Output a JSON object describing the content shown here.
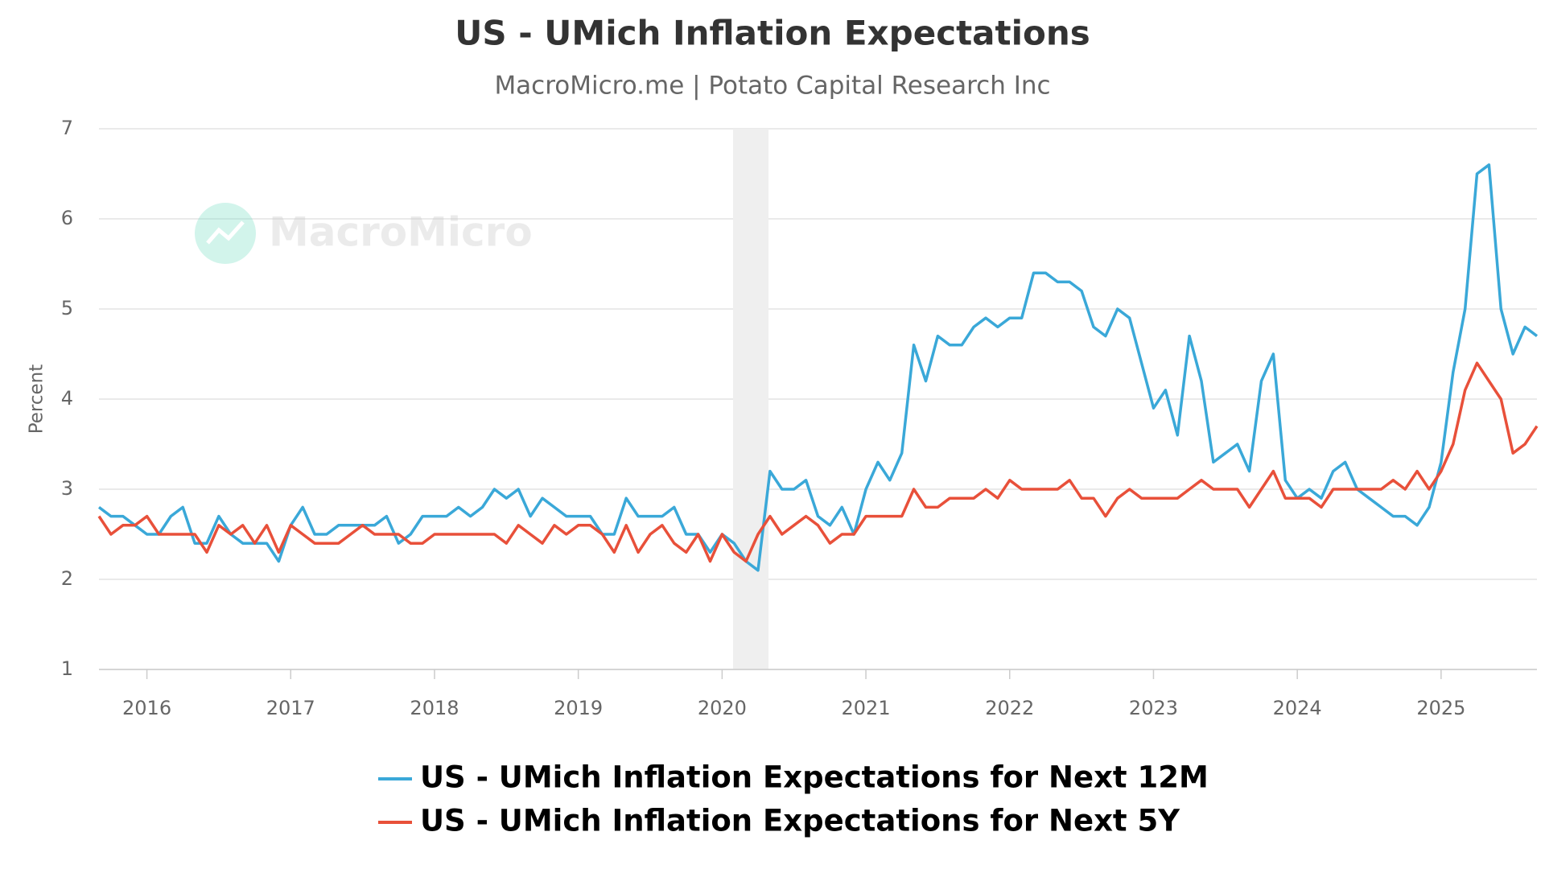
{
  "chart_data": {
    "type": "line",
    "title": "US - UMich Inflation Expectations",
    "subtitle": "MacroMicro.me | Potato Capital Research Inc",
    "watermark": "MacroMicro",
    "y_label": "Percent",
    "categories": [
      null,
      null,
      null,
      null,
      "2016",
      null,
      null,
      null,
      null,
      null,
      null,
      null,
      null,
      null,
      null,
      null,
      "2017",
      null,
      null,
      null,
      null,
      null,
      null,
      null,
      null,
      null,
      null,
      null,
      "2018",
      null,
      null,
      null,
      null,
      null,
      null,
      null,
      null,
      null,
      null,
      null,
      "2019",
      null,
      null,
      null,
      null,
      null,
      null,
      null,
      null,
      null,
      null,
      null,
      "2020",
      null,
      null,
      null,
      null,
      null,
      null,
      null,
      null,
      null,
      null,
      null,
      "2021",
      null,
      null,
      null,
      null,
      null,
      null,
      null,
      null,
      null,
      null,
      null,
      "2022",
      null,
      null,
      null,
      null,
      null,
      null,
      null,
      null,
      null,
      null,
      null,
      "2023",
      null,
      null,
      null,
      null,
      null,
      null,
      null,
      null,
      null,
      null,
      null,
      "2024",
      null,
      null,
      null,
      null,
      null,
      null,
      null,
      null,
      null,
      null,
      null,
      "2025",
      null,
      null,
      null,
      null,
      null,
      null,
      null,
      null
    ],
    "series": [
      {
        "name": "US - UMich Inflation Expectations for Next 12M",
        "color": "#3aa8d8",
        "values": [
          2.8,
          2.7,
          2.7,
          2.6,
          2.5,
          2.5,
          2.7,
          2.8,
          2.4,
          2.4,
          2.7,
          2.5,
          2.4,
          2.4,
          2.4,
          2.2,
          2.6,
          2.8,
          2.5,
          2.5,
          2.6,
          2.6,
          2.6,
          2.6,
          2.7,
          2.4,
          2.5,
          2.7,
          2.7,
          2.7,
          2.8,
          2.7,
          2.8,
          3.0,
          2.9,
          3.0,
          2.7,
          2.9,
          2.8,
          2.7,
          2.7,
          2.7,
          2.5,
          2.5,
          2.9,
          2.7,
          2.7,
          2.7,
          2.8,
          2.5,
          2.5,
          2.3,
          2.5,
          2.4,
          2.2,
          2.1,
          3.2,
          3.0,
          3.0,
          3.1,
          2.7,
          2.6,
          2.8,
          2.5,
          3.0,
          3.3,
          3.1,
          3.4,
          4.6,
          4.2,
          4.7,
          4.6,
          4.6,
          4.8,
          4.9,
          4.8,
          4.9,
          4.9,
          5.4,
          5.4,
          5.3,
          5.3,
          5.2,
          4.8,
          4.7,
          5.0,
          4.9,
          4.4,
          3.9,
          4.1,
          3.6,
          4.7,
          4.2,
          3.3,
          3.4,
          3.5,
          3.2,
          4.2,
          4.5,
          3.1,
          2.9,
          3.0,
          2.9,
          3.2,
          3.3,
          3.0,
          2.9,
          2.8,
          2.7,
          2.7,
          2.6,
          2.8,
          3.3,
          4.3,
          5.0,
          6.5,
          6.6,
          5.0,
          4.5,
          4.8,
          4.7
        ]
      },
      {
        "name": "US - UMich Inflation Expectations for Next 5Y",
        "color": "#e8503a",
        "values": [
          2.7,
          2.5,
          2.6,
          2.6,
          2.7,
          2.5,
          2.5,
          2.5,
          2.5,
          2.3,
          2.6,
          2.5,
          2.6,
          2.4,
          2.6,
          2.3,
          2.6,
          2.5,
          2.4,
          2.4,
          2.4,
          2.5,
          2.6,
          2.5,
          2.5,
          2.5,
          2.4,
          2.4,
          2.5,
          2.5,
          2.5,
          2.5,
          2.5,
          2.5,
          2.4,
          2.6,
          2.5,
          2.4,
          2.6,
          2.5,
          2.6,
          2.6,
          2.5,
          2.3,
          2.6,
          2.3,
          2.5,
          2.6,
          2.4,
          2.3,
          2.5,
          2.2,
          2.5,
          2.3,
          2.2,
          2.5,
          2.7,
          2.5,
          2.6,
          2.7,
          2.6,
          2.4,
          2.5,
          2.5,
          2.7,
          2.7,
          2.7,
          2.7,
          3.0,
          2.8,
          2.8,
          2.9,
          2.9,
          2.9,
          3.0,
          2.9,
          3.1,
          3.0,
          3.0,
          3.0,
          3.0,
          3.1,
          2.9,
          2.9,
          2.7,
          2.9,
          3.0,
          2.9,
          2.9,
          2.9,
          2.9,
          3.0,
          3.1,
          3.0,
          3.0,
          3.0,
          2.8,
          3.0,
          3.2,
          2.9,
          2.9,
          2.9,
          2.8,
          3.0,
          3.0,
          3.0,
          3.0,
          3.0,
          3.1,
          3.0,
          3.2,
          3.0,
          3.2,
          3.5,
          4.1,
          4.4,
          4.2,
          4.0,
          3.4,
          3.5,
          3.7
        ]
      }
    ],
    "ylim": [
      1,
      7
    ],
    "yticks": [
      1,
      2,
      3,
      4,
      5,
      6,
      7
    ],
    "grid": true
  }
}
